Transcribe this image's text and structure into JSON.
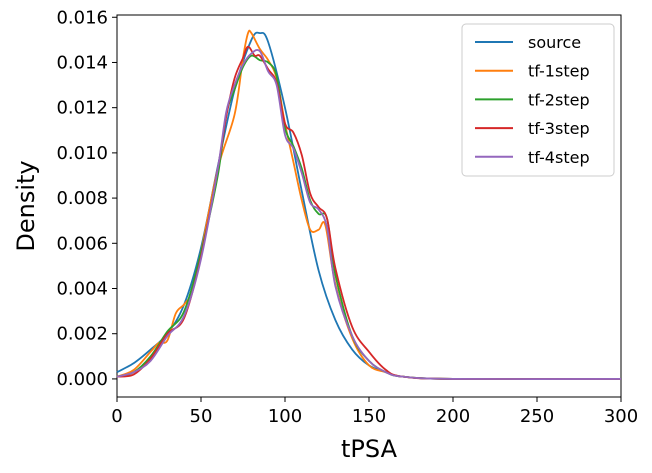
{
  "chart_data": {
    "type": "line",
    "title": "",
    "xlabel": "tPSA",
    "ylabel": "Density",
    "xlim": [
      0,
      300
    ],
    "ylim": [
      -0.0008,
      0.0161
    ],
    "xticks": [
      "0",
      "50",
      "100",
      "150",
      "200",
      "250",
      "300"
    ],
    "yticks": [
      "0.000",
      "0.002",
      "0.004",
      "0.006",
      "0.008",
      "0.010",
      "0.012",
      "0.014",
      "0.016"
    ],
    "grid": false,
    "legend_position": "top-right",
    "series": [
      {
        "name": "source",
        "color": "#1f77b4",
        "points": [
          [
            0,
            0.0003
          ],
          [
            10,
            0.0007
          ],
          [
            20,
            0.0013
          ],
          [
            30,
            0.002
          ],
          [
            40,
            0.0033
          ],
          [
            50,
            0.0058
          ],
          [
            60,
            0.0094
          ],
          [
            70,
            0.0128
          ],
          [
            80,
            0.015
          ],
          [
            85,
            0.0153
          ],
          [
            90,
            0.0149
          ],
          [
            100,
            0.012
          ],
          [
            110,
            0.0083
          ],
          [
            120,
            0.0048
          ],
          [
            130,
            0.0026
          ],
          [
            140,
            0.0013
          ],
          [
            150,
            0.0006
          ],
          [
            160,
            0.0003
          ],
          [
            170,
            0.0001
          ],
          [
            200,
            0.0
          ],
          [
            300,
            0.0
          ]
        ]
      },
      {
        "name": "tf-1step",
        "color": "#ff7f0e",
        "points": [
          [
            0,
            0.0001
          ],
          [
            10,
            0.0004
          ],
          [
            20,
            0.0012
          ],
          [
            25,
            0.0016
          ],
          [
            30,
            0.0017
          ],
          [
            35,
            0.0029
          ],
          [
            40,
            0.0033
          ],
          [
            45,
            0.0039
          ],
          [
            50,
            0.0056
          ],
          [
            60,
            0.0093
          ],
          [
            70,
            0.0117
          ],
          [
            75,
            0.0142
          ],
          [
            78,
            0.0153
          ],
          [
            80,
            0.0153
          ],
          [
            85,
            0.0146
          ],
          [
            90,
            0.0141
          ],
          [
            95,
            0.0133
          ],
          [
            100,
            0.0113
          ],
          [
            105,
            0.0096
          ],
          [
            110,
            0.0079
          ],
          [
            115,
            0.0066
          ],
          [
            120,
            0.0066
          ],
          [
            124,
            0.0068
          ],
          [
            130,
            0.0042
          ],
          [
            140,
            0.0018
          ],
          [
            150,
            0.0006
          ],
          [
            160,
            0.0003
          ],
          [
            170,
            0.0001
          ],
          [
            200,
            0.0
          ],
          [
            300,
            0.0
          ]
        ]
      },
      {
        "name": "tf-2step",
        "color": "#2ca02c",
        "points": [
          [
            0,
            0.0001
          ],
          [
            10,
            0.0003
          ],
          [
            20,
            0.001
          ],
          [
            30,
            0.0021
          ],
          [
            40,
            0.003
          ],
          [
            50,
            0.0056
          ],
          [
            60,
            0.009
          ],
          [
            65,
            0.0117
          ],
          [
            70,
            0.0128
          ],
          [
            75,
            0.0138
          ],
          [
            80,
            0.0143
          ],
          [
            85,
            0.0141
          ],
          [
            90,
            0.014
          ],
          [
            95,
            0.0134
          ],
          [
            100,
            0.0111
          ],
          [
            105,
            0.0103
          ],
          [
            110,
            0.0093
          ],
          [
            115,
            0.0079
          ],
          [
            120,
            0.0073
          ],
          [
            125,
            0.0071
          ],
          [
            130,
            0.0046
          ],
          [
            140,
            0.0019
          ],
          [
            150,
            0.0008
          ],
          [
            160,
            0.0003
          ],
          [
            170,
            0.0001
          ],
          [
            200,
            0.0
          ],
          [
            300,
            0.0
          ]
        ]
      },
      {
        "name": "tf-3step",
        "color": "#d62728",
        "points": [
          [
            0,
            0.0001
          ],
          [
            10,
            0.0002
          ],
          [
            20,
            0.0009
          ],
          [
            30,
            0.002
          ],
          [
            40,
            0.0027
          ],
          [
            50,
            0.0054
          ],
          [
            60,
            0.0093
          ],
          [
            65,
            0.0116
          ],
          [
            70,
            0.0133
          ],
          [
            75,
            0.0142
          ],
          [
            78,
            0.0147
          ],
          [
            82,
            0.0143
          ],
          [
            85,
            0.0143
          ],
          [
            90,
            0.0137
          ],
          [
            95,
            0.0131
          ],
          [
            100,
            0.0113
          ],
          [
            105,
            0.0109
          ],
          [
            110,
            0.0099
          ],
          [
            115,
            0.0082
          ],
          [
            120,
            0.0076
          ],
          [
            125,
            0.0071
          ],
          [
            130,
            0.0049
          ],
          [
            140,
            0.0023
          ],
          [
            150,
            0.0012
          ],
          [
            160,
            0.0004
          ],
          [
            170,
            0.0001
          ],
          [
            200,
            0.0
          ],
          [
            300,
            0.0
          ]
        ]
      },
      {
        "name": "tf-4step",
        "color": "#9467bd",
        "points": [
          [
            0,
            0.0001
          ],
          [
            10,
            0.0003
          ],
          [
            20,
            0.0008
          ],
          [
            30,
            0.0019
          ],
          [
            40,
            0.0028
          ],
          [
            50,
            0.0053
          ],
          [
            60,
            0.0093
          ],
          [
            65,
            0.0118
          ],
          [
            70,
            0.013
          ],
          [
            75,
            0.0139
          ],
          [
            80,
            0.0144
          ],
          [
            85,
            0.0145
          ],
          [
            90,
            0.0136
          ],
          [
            95,
            0.013
          ],
          [
            100,
            0.0108
          ],
          [
            105,
            0.0102
          ],
          [
            110,
            0.0091
          ],
          [
            115,
            0.0078
          ],
          [
            120,
            0.0075
          ],
          [
            125,
            0.0067
          ],
          [
            130,
            0.0041
          ],
          [
            140,
            0.0019
          ],
          [
            150,
            0.0008
          ],
          [
            160,
            0.0003
          ],
          [
            170,
            0.0001
          ],
          [
            200,
            0.0
          ],
          [
            300,
            0.0
          ]
        ]
      }
    ]
  }
}
